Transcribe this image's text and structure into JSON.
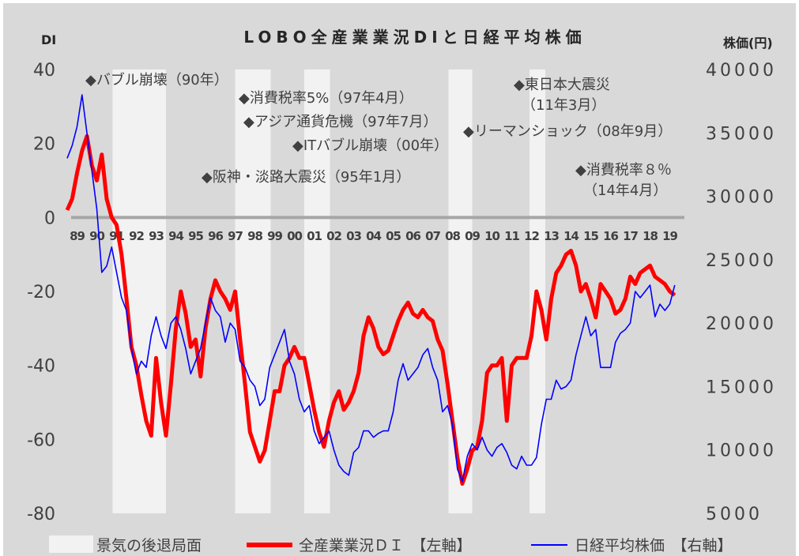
{
  "chart_data": {
    "type": "line",
    "title": "LOBO全産業業況DIと日経平均株価",
    "y_label": "DI",
    "y2_label": "株価(円)",
    "xlim": [
      1989,
      2020
    ],
    "xticks": [
      {
        "value": 1989.5,
        "label": "89"
      },
      {
        "value": 1990.5,
        "label": "90"
      },
      {
        "value": 1991.5,
        "label": "91"
      },
      {
        "value": 1992.5,
        "label": "92"
      },
      {
        "value": 1993.5,
        "label": "93"
      },
      {
        "value": 1994.5,
        "label": "94"
      },
      {
        "value": 1995.5,
        "label": "95"
      },
      {
        "value": 1996.5,
        "label": "96"
      },
      {
        "value": 1997.5,
        "label": "97"
      },
      {
        "value": 1998.5,
        "label": "98"
      },
      {
        "value": 1999.5,
        "label": "99"
      },
      {
        "value": 2000.5,
        "label": "00"
      },
      {
        "value": 2001.5,
        "label": "01"
      },
      {
        "value": 2002.5,
        "label": "02"
      },
      {
        "value": 2003.5,
        "label": "03"
      },
      {
        "value": 2004.5,
        "label": "04"
      },
      {
        "value": 2005.5,
        "label": "05"
      },
      {
        "value": 2006.5,
        "label": "06"
      },
      {
        "value": 2007.5,
        "label": "07"
      },
      {
        "value": 2008.5,
        "label": "08"
      },
      {
        "value": 2009.5,
        "label": "09"
      },
      {
        "value": 2010.5,
        "label": "10"
      },
      {
        "value": 2011.5,
        "label": "11"
      },
      {
        "value": 2012.5,
        "label": "12"
      },
      {
        "value": 2013.5,
        "label": "13"
      },
      {
        "value": 2014.5,
        "label": "14"
      },
      {
        "value": 2015.5,
        "label": "15"
      },
      {
        "value": 2016.5,
        "label": "16"
      },
      {
        "value": 2017.5,
        "label": "17"
      },
      {
        "value": 2018.5,
        "label": "18"
      },
      {
        "value": 2019.5,
        "label": "19"
      }
    ],
    "ylim": [
      -80,
      40
    ],
    "yticks": [
      40,
      20,
      0,
      -20,
      -40,
      -60,
      -80
    ],
    "y2lim": [
      5000,
      40000
    ],
    "y2ticks": [
      40000,
      35000,
      30000,
      25000,
      20000,
      15000,
      10000,
      5000
    ],
    "recession_label": "景気の後退局面",
    "recession_color": "#f2f2f2",
    "recessions": [
      [
        1991.3,
        1994.0
      ],
      [
        1997.5,
        1999.3
      ],
      [
        2001.0,
        2002.3
      ],
      [
        2008.3,
        2009.5
      ],
      [
        2012.4,
        2013.2
      ]
    ],
    "x": [
      1989,
      1989.25,
      1989.5,
      1989.75,
      1990,
      1990.25,
      1990.5,
      1990.75,
      1991,
      1991.25,
      1991.5,
      1991.75,
      1992,
      1992.25,
      1992.5,
      1992.75,
      1993,
      1993.25,
      1993.5,
      1993.75,
      1994,
      1994.25,
      1994.5,
      1994.75,
      1995,
      1995.25,
      1995.5,
      1995.75,
      1996,
      1996.25,
      1996.5,
      1996.75,
      1997,
      1997.25,
      1997.5,
      1997.75,
      1998,
      1998.25,
      1998.5,
      1998.75,
      1999,
      1999.25,
      1999.5,
      1999.75,
      2000,
      2000.25,
      2000.5,
      2000.75,
      2001,
      2001.25,
      2001.5,
      2001.75,
      2002,
      2002.25,
      2002.5,
      2002.75,
      2003,
      2003.25,
      2003.5,
      2003.75,
      2004,
      2004.25,
      2004.5,
      2004.75,
      2005,
      2005.25,
      2005.5,
      2005.75,
      2006,
      2006.25,
      2006.5,
      2006.75,
      2007,
      2007.25,
      2007.5,
      2007.75,
      2008,
      2008.25,
      2008.5,
      2008.75,
      2009,
      2009.25,
      2009.5,
      2009.75,
      2010,
      2010.25,
      2010.5,
      2010.75,
      2011,
      2011.25,
      2011.5,
      2011.75,
      2012,
      2012.25,
      2012.5,
      2012.75,
      2013,
      2013.25,
      2013.5,
      2013.75,
      2014,
      2014.25,
      2014.5,
      2014.75,
      2015,
      2015.25,
      2015.5,
      2015.75,
      2016,
      2016.25,
      2016.5,
      2016.75,
      2017,
      2017.25,
      2017.5,
      2017.75,
      2018,
      2018.25,
      2018.5,
      2018.75,
      2019,
      2019.25,
      2019.5,
      2019.75
    ],
    "series": [
      {
        "name": "全産業業況ＤＩ　【左軸】",
        "color": "#ff0000",
        "values": [
          2,
          5,
          12,
          18,
          22,
          14,
          10,
          17,
          5,
          0,
          -2,
          -10,
          -22,
          -35,
          -40,
          -48,
          -55,
          -59,
          -38,
          -50,
          -59,
          -45,
          -30,
          -20,
          -26,
          -35,
          -33,
          -43,
          -30,
          -22,
          -17,
          -20,
          -22,
          -25,
          -20,
          -33,
          -45,
          -58,
          -62,
          -66,
          -63,
          -55,
          -47,
          -47,
          -40,
          -38,
          -35,
          -38,
          -38,
          -45,
          -52,
          -58,
          -62,
          -55,
          -50,
          -47,
          -52,
          -50,
          -47,
          -42,
          -32,
          -27,
          -30,
          -35,
          -37,
          -36,
          -32,
          -28,
          -25,
          -23,
          -26,
          -27,
          -25,
          -27,
          -28,
          -33,
          -36,
          -45,
          -55,
          -65,
          -72,
          -68,
          -63,
          -62,
          -55,
          -42,
          -40,
          -40,
          -38,
          -55,
          -40,
          -38,
          -38,
          -38,
          -32,
          -20,
          -25,
          -33,
          -22,
          -15,
          -13,
          -10,
          -9,
          -13,
          -20,
          -18,
          -22,
          -27,
          -18,
          -20,
          -22,
          -26,
          -25,
          -22,
          -16,
          -18,
          -15,
          -14,
          -13,
          -16,
          -17,
          -18,
          -20,
          -21
        ]
      },
      {
        "name": "日経平均株価　【右軸】",
        "color": "#0000ff",
        "axis": "y2",
        "values": [
          33000,
          34000,
          35500,
          38000,
          35000,
          32000,
          29000,
          24000,
          24500,
          26000,
          24000,
          22000,
          21000,
          18000,
          16000,
          17000,
          16500,
          19000,
          20500,
          19000,
          18000,
          20000,
          20500,
          19500,
          18000,
          16000,
          17000,
          18000,
          20000,
          22000,
          21000,
          20500,
          18500,
          20000,
          19500,
          17000,
          16500,
          15500,
          15000,
          13500,
          14000,
          16500,
          17500,
          18500,
          19500,
          17000,
          16000,
          14000,
          13000,
          13500,
          11500,
          10500,
          11000,
          11500,
          10000,
          8800,
          8300,
          8000,
          9800,
          10200,
          11500,
          11500,
          11000,
          11300,
          11500,
          11500,
          13000,
          15500,
          16800,
          15500,
          16000,
          16500,
          17500,
          18000,
          16500,
          15500,
          13000,
          13500,
          12000,
          8500,
          7500,
          9500,
          10500,
          10000,
          11000,
          10000,
          9500,
          10200,
          10500,
          9800,
          8800,
          8500,
          9500,
          8800,
          8800,
          9400,
          12000,
          14000,
          14000,
          15500,
          14800,
          15000,
          15500,
          17500,
          19000,
          20500,
          19000,
          19500,
          16500,
          16500,
          16500,
          18500,
          19200,
          19500,
          20000,
          22500,
          22000,
          22500,
          23000,
          20500,
          21500,
          21000,
          21500,
          23000
        ]
      }
    ],
    "annotations": [
      [
        "◆バブル崩壊（90年）"
      ],
      [
        "◆消費税率5%（97年4月）"
      ],
      [
        "◆アジア通貨危機（97年7月）"
      ],
      [
        "◆ITバブル崩壊（00年）"
      ],
      [
        "◆阪神・淡路大震災（95年1月）"
      ],
      [
        "◆リーマンショック（08年9月）"
      ],
      [
        "◆東日本大震災",
        "（11年3月）"
      ],
      [
        "◆消費税率８％",
        "（14年4月）"
      ]
    ]
  }
}
